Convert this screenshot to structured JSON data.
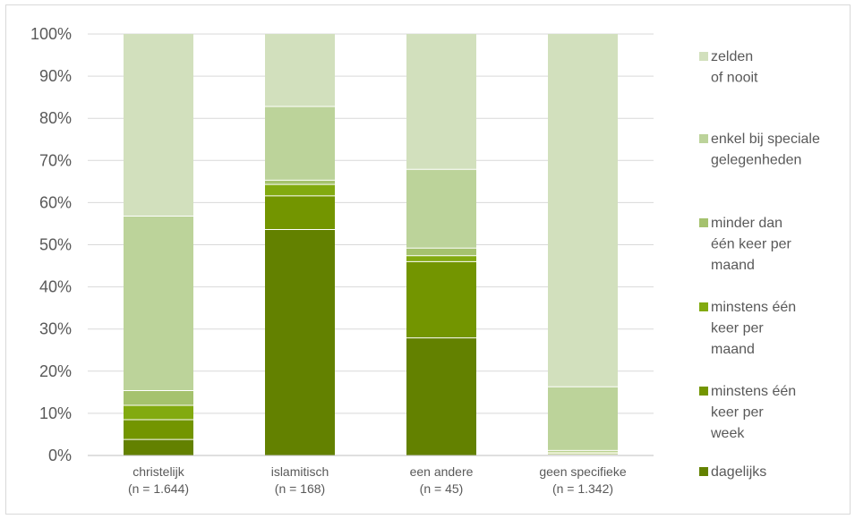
{
  "chart_data": {
    "type": "bar",
    "stacked": true,
    "categories": [
      [
        "christelijk",
        "(n = 1.644)"
      ],
      [
        "islamitisch",
        "(n = 168)"
      ],
      [
        "een andere",
        "(n = 45)"
      ],
      [
        "geen specifieke",
        "(n = 1.342)"
      ]
    ],
    "ylim": [
      0,
      100
    ],
    "yticks": [
      0,
      10,
      20,
      30,
      40,
      50,
      60,
      70,
      80,
      90,
      100
    ],
    "ytick_labels": [
      "0%",
      "10%",
      "20%",
      "30%",
      "40%",
      "50%",
      "60%",
      "70%",
      "80%",
      "90%",
      "100%"
    ],
    "grid": true,
    "legend_position": "right",
    "series": [
      {
        "name": "dagelijks",
        "label_lines": [
          "dagelijks"
        ],
        "color": "#638100",
        "values": [
          3.8,
          53.6,
          27.9,
          0.2
        ]
      },
      {
        "name": "minstens één keer per week",
        "label_lines": [
          "minstens één",
          "keer per",
          "week"
        ],
        "color": "#739500",
        "values": [
          4.7,
          8.0,
          18.1,
          0.3
        ]
      },
      {
        "name": "minstens één keer per maand",
        "label_lines": [
          "minstens één",
          "keer per",
          "maand"
        ],
        "color": "#82aa10",
        "values": [
          3.4,
          2.7,
          1.4,
          0.3
        ]
      },
      {
        "name": "minder dan één keer per maand",
        "label_lines": [
          "minder dan",
          "één keer per",
          "maand"
        ],
        "color": "#a5c26e",
        "values": [
          3.5,
          1.0,
          1.8,
          0.4
        ]
      },
      {
        "name": "enkel bij speciale gelegenheden",
        "label_lines": [
          "enkel bij speciale",
          "gelegenheden"
        ],
        "color": "#bcd39a",
        "values": [
          41.4,
          17.5,
          18.7,
          15.1
        ]
      },
      {
        "name": "zelden of nooit",
        "label_lines": [
          "zelden",
          "of nooit"
        ],
        "color": "#d2e0bd",
        "values": [
          43.2,
          17.2,
          32.1,
          83.7
        ]
      }
    ]
  }
}
